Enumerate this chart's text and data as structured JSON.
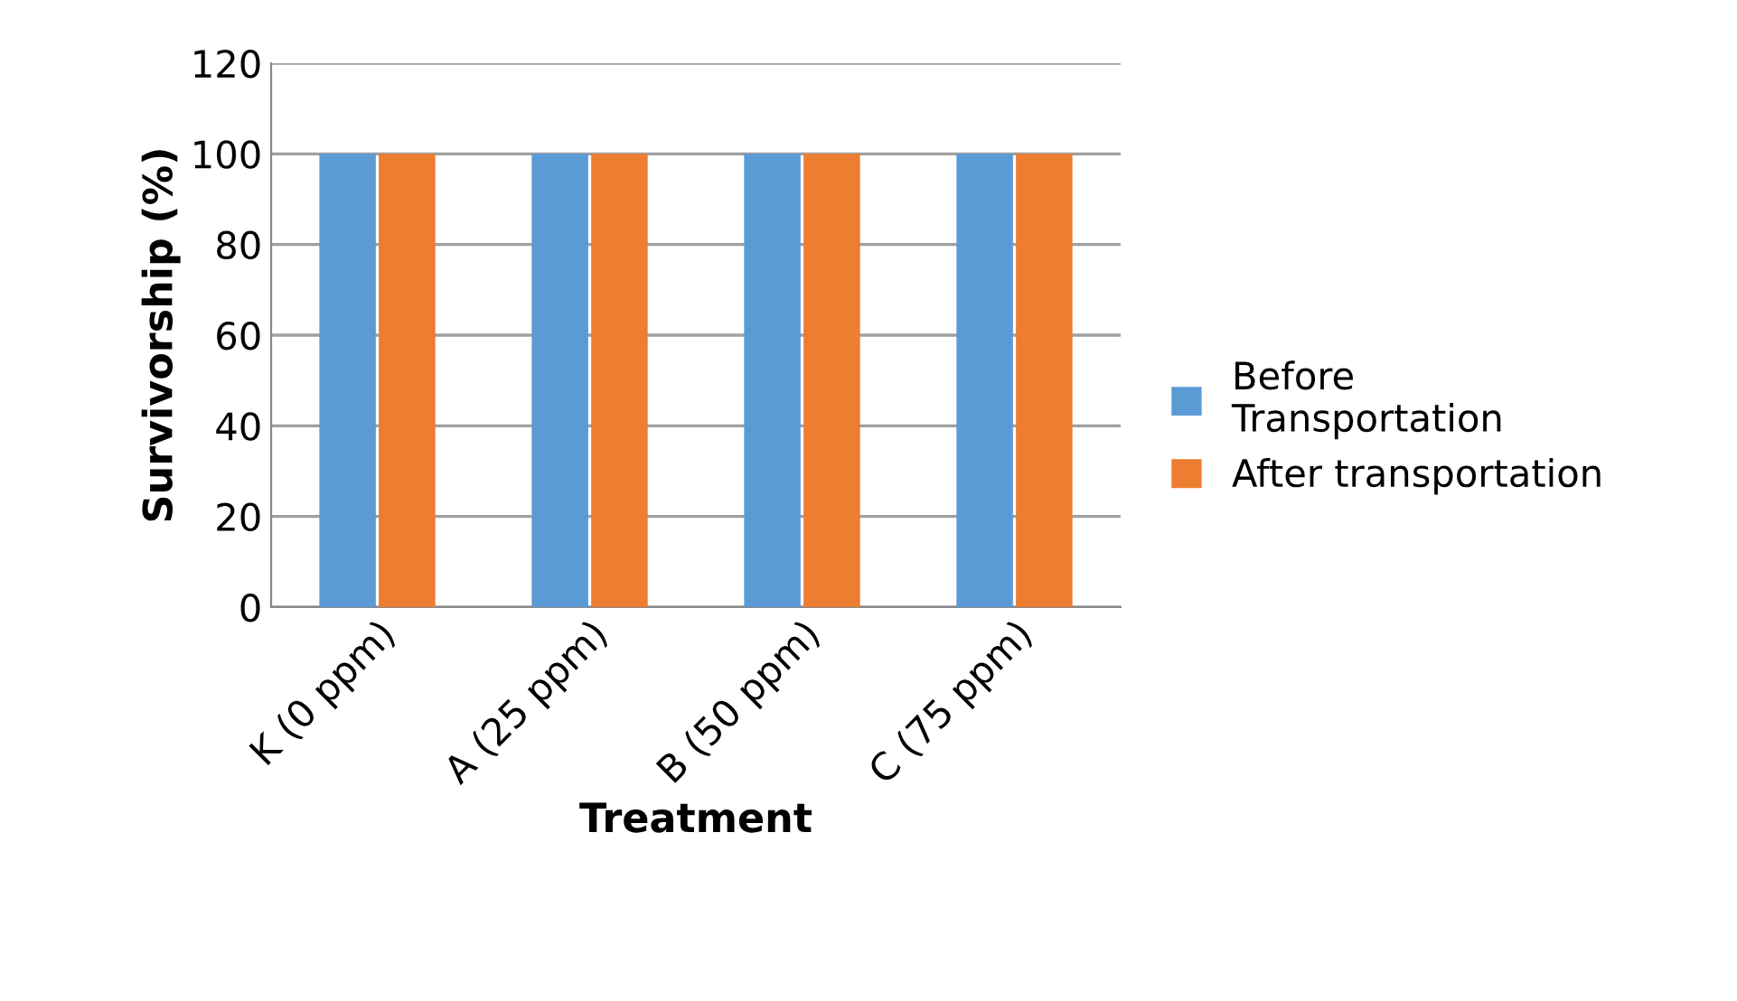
{
  "chart_data": {
    "type": "bar",
    "xlabel": "Treatment",
    "ylabel": "Survivorship (%)",
    "categories": [
      "K (0 ppm)",
      "A (25 ppm)",
      "B (50 ppm)",
      "C (75 ppm)"
    ],
    "series": [
      {
        "name": "Before\nTransportation",
        "color": "#5b9bd5",
        "values": [
          100,
          100,
          100,
          100
        ]
      },
      {
        "name": "After transportation",
        "color": "#ed7d31",
        "values": [
          100,
          100,
          100,
          100
        ]
      }
    ],
    "ylim": [
      0,
      120
    ],
    "yticks": [
      0,
      20,
      40,
      60,
      80,
      100,
      120
    ],
    "grid": "y",
    "legend": "right"
  }
}
